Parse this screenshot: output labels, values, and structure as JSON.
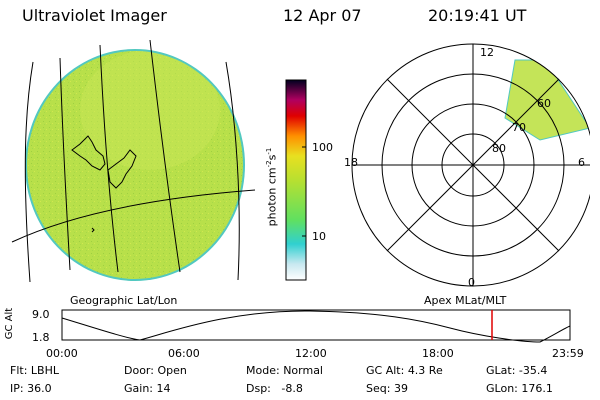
{
  "header": {
    "title": "Ultraviolet Imager",
    "date": "12 Apr 07",
    "time": "20:19:41 UT"
  },
  "colorbar": {
    "label": "photon cm^-2 s^-1",
    "tick_labels": [
      "100",
      "10"
    ]
  },
  "polar": {
    "mlt_labels": {
      "top": "12",
      "bottom": "0",
      "left": "18",
      "right": "6"
    },
    "lat_labels": [
      "60",
      "70",
      "80"
    ]
  },
  "panel_labels": {
    "left": "Geographic Lat/Lon",
    "right": "Apex MLat/MLT"
  },
  "orbit": {
    "ylabel": "GC Alt",
    "y_ticks": [
      "9.0",
      "1.8"
    ],
    "x_ticks": [
      "00:00",
      "06:00",
      "12:00",
      "18:00",
      "23:59"
    ],
    "current_time_marker": "20:19:41"
  },
  "info": {
    "flt": {
      "label": "Flt:",
      "value": "LBHL"
    },
    "ip": {
      "label": "IP:",
      "value": "36.0"
    },
    "door": {
      "label": "Door:",
      "value": "Open"
    },
    "gain": {
      "label": "Gain:",
      "value": "14"
    },
    "mode": {
      "label": "Mode:",
      "value": "Normal"
    },
    "dsp": {
      "label": "Dsp:",
      "value": "-8.8"
    },
    "gcalt": {
      "label": "GC Alt:",
      "value": "4.3 Re"
    },
    "seq": {
      "label": "Seq:",
      "value": "39"
    },
    "glat": {
      "label": "GLat:",
      "value": "-35.4"
    },
    "glon": {
      "label": "GLon:",
      "value": "176.1"
    }
  },
  "colors": {
    "disk_fill": "#b8e04a",
    "disk_edge": "#52c8c0",
    "polar_fill": "#c4e458",
    "orbit_marker": "#e00000"
  }
}
